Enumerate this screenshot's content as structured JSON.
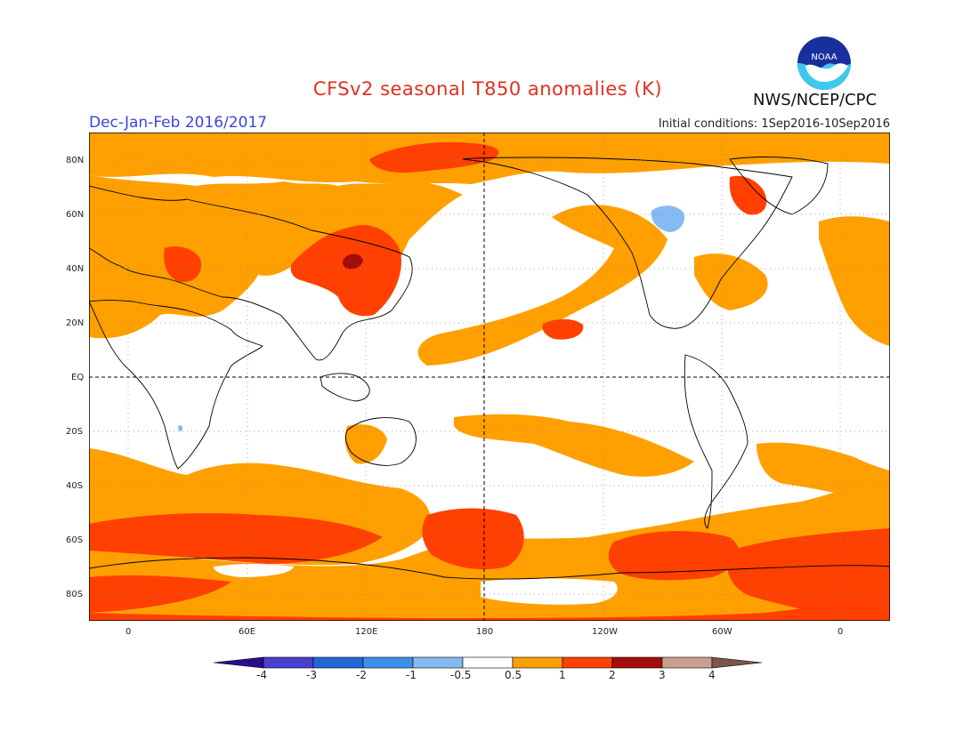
{
  "header": {
    "title": "CFSv2 seasonal T850 anomalies (K)",
    "season": "Dec-Jan-Feb 2016/2017",
    "initial_conditions": "Initial conditions: 1Sep2016-10Sep2016",
    "agency": "NWS/NCEP/CPC",
    "logo_text": "NOAA"
  },
  "map": {
    "projection": "cylindrical equidistant, centered 180",
    "lat_labels": [
      "80N",
      "60N",
      "40N",
      "20N",
      "EQ",
      "20S",
      "40S",
      "60S",
      "80S"
    ],
    "lon_labels": [
      "0",
      "60E",
      "120E",
      "180",
      "120W",
      "60W",
      "0"
    ]
  },
  "colorbar": {
    "labels": [
      "-4",
      "-3",
      "-2",
      "-1",
      "-0.5",
      "0.5",
      "1",
      "2",
      "3",
      "4"
    ],
    "colors": [
      "#2a0c8c",
      "#4b3fd0",
      "#2267d8",
      "#3e8fe8",
      "#86baf3",
      "#ffffff",
      "#ffa000",
      "#ff4000",
      "#a50d0d",
      "#c9a090",
      "#7a5548"
    ]
  }
}
